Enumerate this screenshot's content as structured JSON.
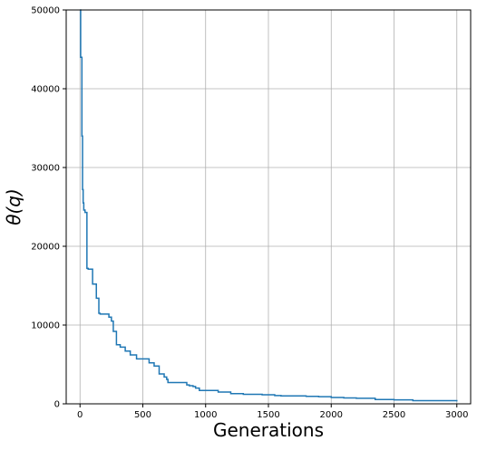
{
  "chart_data": {
    "type": "line",
    "title": "",
    "xlabel": "Generations",
    "ylabel": "θ(q)",
    "xlim": [
      -110,
      3110
    ],
    "ylim": [
      0,
      50000
    ],
    "xticks": [
      0,
      500,
      1000,
      1500,
      2000,
      2500,
      3000
    ],
    "yticks": [
      0,
      10000,
      20000,
      30000,
      40000,
      50000
    ],
    "xtick_labels": [
      "0",
      "500",
      "1000",
      "1500",
      "2000",
      "2500",
      "3000"
    ],
    "ytick_labels": [
      "0",
      "10000",
      "20000",
      "30000",
      "40000",
      "50000"
    ],
    "grid": true,
    "line_color": "#1f77b4",
    "series": [
      {
        "step": true,
        "x": [
          0,
          5,
          15,
          20,
          25,
          30,
          40,
          55,
          65,
          100,
          130,
          150,
          160,
          230,
          250,
          265,
          290,
          320,
          360,
          400,
          450,
          550,
          590,
          630,
          670,
          690,
          700,
          850,
          870,
          900,
          920,
          950,
          1100,
          1200,
          1300,
          1450,
          1550,
          1600,
          1800,
          1900,
          2000,
          2100,
          2200,
          2350,
          2500,
          2650,
          3000
        ],
        "y": [
          50000,
          44000,
          34000,
          27200,
          25500,
          24600,
          24300,
          17200,
          17100,
          15200,
          13400,
          11500,
          11400,
          11000,
          10500,
          9200,
          7500,
          7200,
          6700,
          6200,
          5700,
          5200,
          4800,
          3800,
          3400,
          3100,
          2700,
          2400,
          2300,
          2200,
          2000,
          1700,
          1500,
          1300,
          1200,
          1150,
          1050,
          1000,
          950,
          900,
          800,
          750,
          700,
          550,
          500,
          400,
          300
        ]
      }
    ]
  }
}
